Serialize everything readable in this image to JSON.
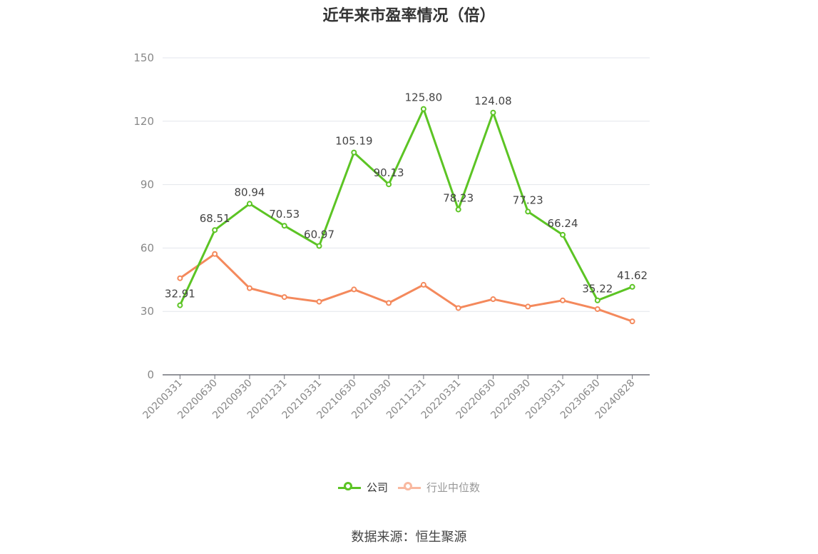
{
  "chart_data": {
    "type": "line",
    "title": "近年来市盈率情况（倍）",
    "categories": [
      "20200331",
      "20200630",
      "20200930",
      "20201231",
      "20210331",
      "20210630",
      "20210930",
      "20211231",
      "20220331",
      "20220630",
      "20220930",
      "20230331",
      "20230630",
      "20240828"
    ],
    "ylim": [
      0,
      150
    ],
    "yticks": [
      0,
      30,
      60,
      90,
      120,
      150
    ],
    "grid": true,
    "legend_position": "bottom",
    "series": [
      {
        "name": "公司",
        "color": "#5cc424",
        "values": [
          32.91,
          68.51,
          80.94,
          70.53,
          60.97,
          105.19,
          90.13,
          125.8,
          78.23,
          124.08,
          77.23,
          66.24,
          35.22,
          41.62
        ],
        "labels": [
          "32.91",
          "68.51",
          "80.94",
          "70.53",
          "60.97",
          "105.19",
          "90.13",
          "125.80",
          "78.23",
          "124.08",
          "77.23",
          "66.24",
          "35.22",
          "41.62"
        ]
      },
      {
        "name": "行业中位数",
        "color": "#f4895c",
        "values": [
          45.7,
          57.2,
          41.0,
          36.8,
          34.6,
          40.4,
          34.0,
          42.6,
          31.6,
          35.8,
          32.3,
          35.2,
          31.1,
          25.3
        ]
      }
    ]
  },
  "source": "数据来源：恒生聚源",
  "legend_muted_color": "#f9b9a0",
  "legend_muted_text": "#999999"
}
